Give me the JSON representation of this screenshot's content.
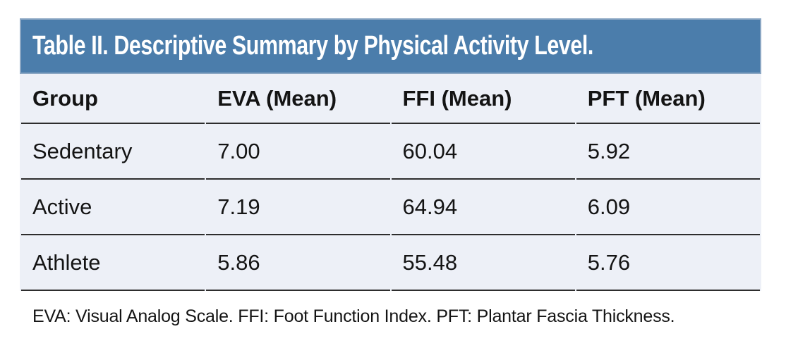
{
  "table": {
    "title": "Table II. Descriptive Summary by Physical Activity Level.",
    "columns": [
      "Group",
      "EVA (Mean)",
      "FFI (Mean)",
      "PFT (Mean)"
    ],
    "rows": [
      {
        "group": "Sedentary",
        "eva": "7.00",
        "ffi": "60.04",
        "pft": "5.92"
      },
      {
        "group": "Active",
        "eva": "7.19",
        "ffi": "64.94",
        "pft": "6.09"
      },
      {
        "group": "Athlete",
        "eva": "5.86",
        "ffi": "55.48",
        "pft": "5.76"
      }
    ],
    "footnote": "EVA: Visual Analog Scale. FFI: Foot Function Index. PFT: Plantar Fascia Thickness."
  },
  "chart_data": {
    "type": "table",
    "title": "Table II. Descriptive Summary by Physical Activity Level.",
    "columns": [
      "Group",
      "EVA (Mean)",
      "FFI (Mean)",
      "PFT (Mean)"
    ],
    "rows": [
      [
        "Sedentary",
        7.0,
        60.04,
        5.92
      ],
      [
        "Active",
        7.19,
        64.94,
        6.09
      ],
      [
        "Athlete",
        5.86,
        55.48,
        5.76
      ]
    ],
    "footnote": "EVA: Visual Analog Scale. FFI: Foot Function Index. PFT: Plantar Fascia Thickness."
  },
  "colors": {
    "header_bg": "#4b7dab",
    "header_border": "#8aa6c3",
    "row_bg": "#edf0f7",
    "divider": "#2d2d2d",
    "title_text": "#ffffff",
    "body_text": "#141414",
    "page_bg": "#ffffff"
  }
}
